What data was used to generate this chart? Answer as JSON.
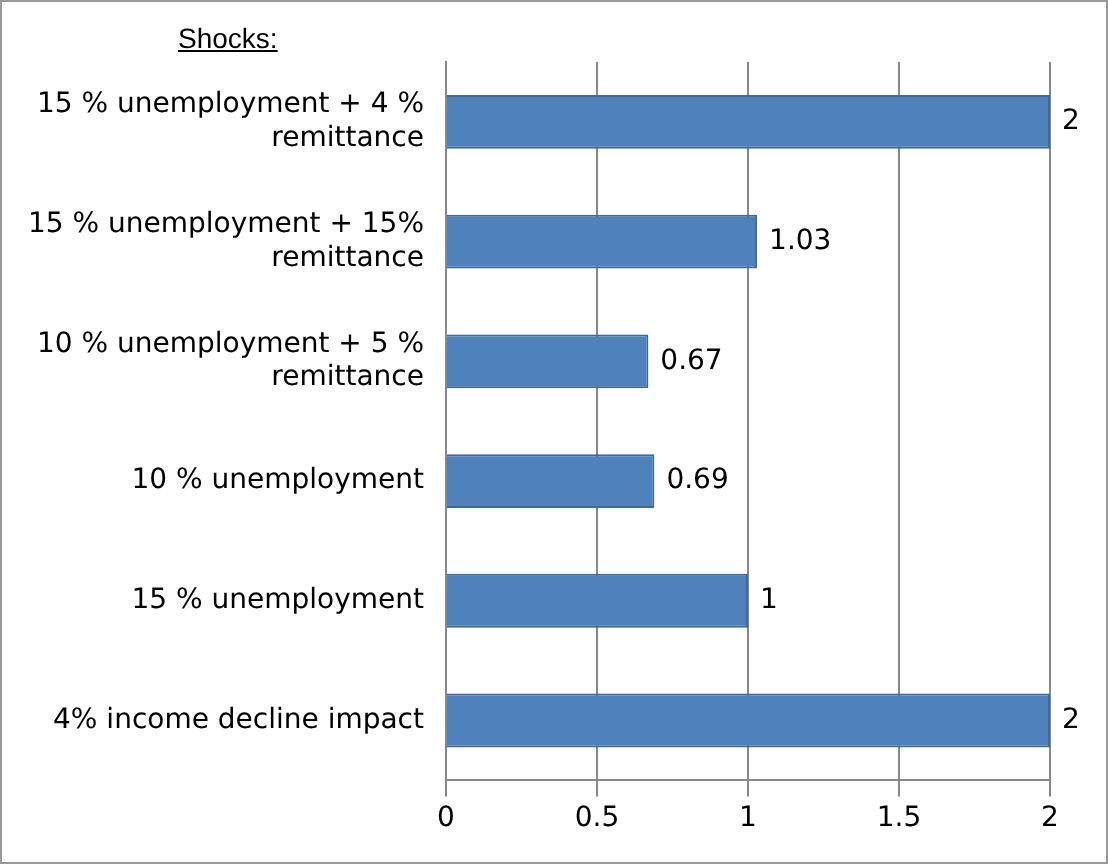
{
  "chart_data": {
    "type": "bar",
    "orientation": "horizontal",
    "categories": [
      "15 % unemployment + 4 % remittance",
      "15 % unemployment + 15% remittance",
      "10 % unemployment + 5 % remittance",
      "10 % unemployment",
      "15 % unemployment",
      "4% income decline impact"
    ],
    "values": [
      2,
      1.03,
      0.67,
      0.69,
      1,
      2
    ],
    "color": "#4f81bd",
    "xlim": [
      0,
      2
    ],
    "xticks": [
      0,
      0.5,
      1,
      1.5,
      2
    ],
    "grid": "x",
    "data_labels": true,
    "annotations": [
      "Shocks:"
    ]
  }
}
